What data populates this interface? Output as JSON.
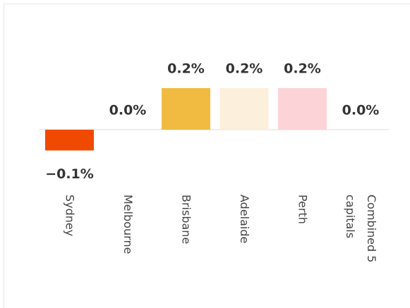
{
  "chart_data": {
    "type": "bar",
    "categories": [
      "Sydney",
      "Melbourne",
      "Brisbane",
      "Adelaide",
      "Perth",
      "Combined 5 capitals"
    ],
    "values": [
      -0.1,
      0.0,
      0.2,
      0.2,
      0.2,
      0.0
    ],
    "value_labels": [
      "−0.1%",
      "0.0%",
      "0.2%",
      "0.2%",
      "0.2%",
      "0.0%"
    ],
    "colors": [
      "#f04a00",
      null,
      "#f0bb40",
      "#fcf0dc",
      "#fcd4d8",
      null
    ]
  }
}
